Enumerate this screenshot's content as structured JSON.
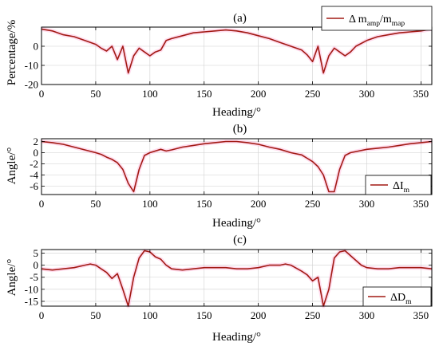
{
  "chart_data": [
    {
      "type": "line",
      "title": "(a)",
      "xlabel": "Heading/°",
      "ylabel": "Percentage/%",
      "xlim": [
        0,
        360
      ],
      "ylim": [
        -20,
        10
      ],
      "xticks": [
        "0",
        "50",
        "100",
        "150",
        "200",
        "250",
        "300",
        "350"
      ],
      "yticks": [
        "0",
        "-10",
        "-20"
      ],
      "ytick_values": [
        0,
        -10,
        -20
      ],
      "grid": true,
      "legend_position": "top-right",
      "series": [
        {
          "name": "Δ m_amp/m_map",
          "legend_main": "Δ m",
          "legend_sub1": "amp",
          "legend_mid": "/m",
          "legend_sub2": "map",
          "color": "#a21a14",
          "x": [
            0,
            10,
            20,
            30,
            40,
            50,
            55,
            60,
            65,
            70,
            75,
            80,
            85,
            90,
            95,
            100,
            105,
            110,
            115,
            120,
            130,
            140,
            150,
            160,
            170,
            180,
            190,
            200,
            210,
            220,
            230,
            240,
            245,
            250,
            255,
            260,
            265,
            270,
            275,
            280,
            285,
            290,
            300,
            310,
            320,
            330,
            340,
            350,
            360
          ],
          "values": [
            9,
            8,
            6,
            5,
            3,
            1,
            -1,
            -2.5,
            0,
            -7,
            0,
            -14,
            -5,
            -1,
            -3,
            -5,
            -3,
            -2,
            3,
            4,
            5.5,
            7,
            7.5,
            8,
            8.5,
            8,
            7,
            5.5,
            4,
            2,
            0,
            -2,
            -4.5,
            -8,
            0,
            -14,
            -5,
            -1,
            -3,
            -5,
            -3,
            0,
            3,
            5,
            6,
            7,
            7.5,
            8,
            9
          ]
        }
      ]
    },
    {
      "type": "line",
      "title": "(b)",
      "xlabel": "Heading/°",
      "ylabel": "Angle/°",
      "xlim": [
        0,
        360
      ],
      "ylim": [
        -7.5,
        2.5
      ],
      "xticks": [
        "0",
        "50",
        "100",
        "150",
        "200",
        "250",
        "300",
        "350"
      ],
      "yticks": [
        "2",
        "0",
        "-2",
        "-4",
        "-6"
      ],
      "ytick_values": [
        2,
        0,
        -2,
        -4,
        -6
      ],
      "grid": true,
      "legend_position": "bottom-right",
      "series": [
        {
          "name": "ΔI_m",
          "legend_main": "ΔI",
          "legend_sub1": "m",
          "color": "#a21a14",
          "x": [
            0,
            10,
            20,
            30,
            40,
            50,
            55,
            60,
            65,
            70,
            75,
            80,
            85,
            90,
            95,
            100,
            110,
            115,
            120,
            130,
            140,
            150,
            160,
            170,
            180,
            190,
            200,
            210,
            220,
            230,
            240,
            245,
            250,
            255,
            260,
            265,
            270,
            275,
            280,
            285,
            290,
            300,
            310,
            320,
            330,
            340,
            350,
            360
          ],
          "values": [
            2,
            1.8,
            1.5,
            1,
            0.5,
            0,
            -0.3,
            -0.8,
            -1.2,
            -1.8,
            -3,
            -5.5,
            -7,
            -3,
            -0.5,
            0,
            0.6,
            0.3,
            0.5,
            1,
            1.3,
            1.6,
            1.8,
            2,
            2,
            1.8,
            1.5,
            1,
            0.6,
            0,
            -0.4,
            -1,
            -1.6,
            -2.5,
            -4,
            -7,
            -7,
            -3,
            -0.5,
            0,
            0.2,
            0.6,
            0.8,
            1,
            1.3,
            1.6,
            1.8,
            2
          ]
        }
      ]
    },
    {
      "type": "line",
      "title": "(c)",
      "xlabel": "Heading/°",
      "ylabel": "Angle/°",
      "xlim": [
        0,
        360
      ],
      "ylim": [
        -17,
        6.5
      ],
      "xticks": [
        "0",
        "50",
        "100",
        "150",
        "200",
        "250",
        "300",
        "350"
      ],
      "yticks": [
        "5",
        "0",
        "-5",
        "-10",
        "-15"
      ],
      "ytick_values": [
        5,
        0,
        -5,
        -10,
        -15
      ],
      "grid": true,
      "legend_position": "bottom-right",
      "series": [
        {
          "name": "ΔD_m",
          "legend_main": "ΔD",
          "legend_sub1": "m",
          "color": "#a21a14",
          "x": [
            0,
            10,
            20,
            30,
            40,
            45,
            50,
            55,
            60,
            65,
            70,
            75,
            80,
            85,
            90,
            95,
            100,
            105,
            110,
            115,
            120,
            130,
            140,
            150,
            160,
            170,
            180,
            190,
            200,
            210,
            220,
            225,
            230,
            240,
            245,
            250,
            255,
            260,
            265,
            270,
            275,
            280,
            285,
            290,
            295,
            300,
            310,
            320,
            330,
            340,
            350,
            360
          ],
          "values": [
            -1.5,
            -2,
            -1.5,
            -1,
            0,
            0.5,
            0,
            -1.5,
            -3,
            -5.5,
            -3.5,
            -10,
            -17,
            -5,
            3,
            6,
            5.5,
            3.5,
            2.5,
            0,
            -1.5,
            -2,
            -1.5,
            -1,
            -1,
            -1,
            -1.5,
            -1.5,
            -1,
            0,
            0,
            0.5,
            0,
            -2.5,
            -4,
            -6.5,
            -5,
            -17,
            -10,
            3,
            5.5,
            6,
            4,
            2,
            0,
            -1,
            -1.5,
            -1.5,
            -1,
            -1,
            -1,
            -1.5
          ]
        }
      ]
    }
  ]
}
